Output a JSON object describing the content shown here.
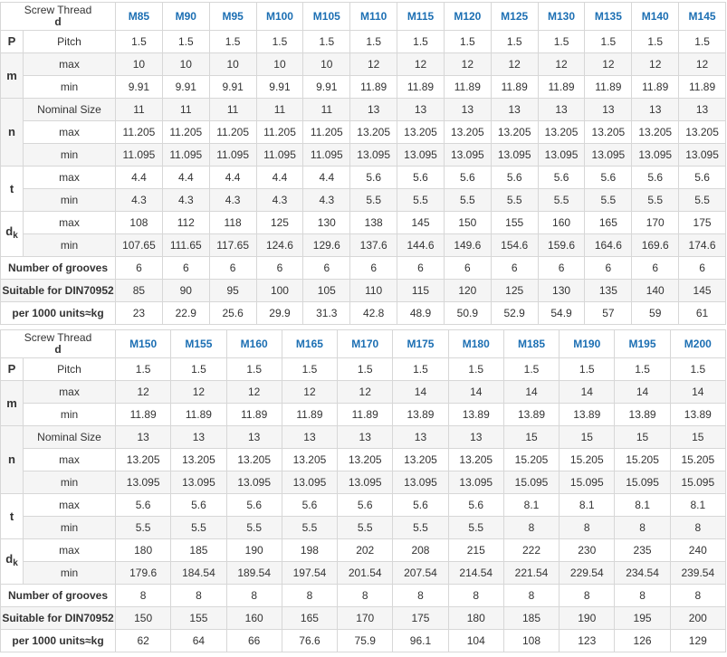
{
  "labels": {
    "screw_thread": "Screw Thread",
    "d": "d",
    "P": "P",
    "pitch": "Pitch",
    "m": "m",
    "max": "max",
    "min": "min",
    "nominal_size": "Nominal Size",
    "n": "n",
    "t": "t",
    "dk": "d",
    "dk_sub": "k",
    "grooves": "Number of grooves",
    "suitable": "Suitable for DIN70952",
    "weight": "per 1000 units≈kg"
  },
  "tables": [
    {
      "threads": [
        "M85",
        "M90",
        "M95",
        "M100",
        "M105",
        "M110",
        "M115",
        "M120",
        "M125",
        "M130",
        "M135",
        "M140",
        "M145"
      ],
      "pitch": [
        "1.5",
        "1.5",
        "1.5",
        "1.5",
        "1.5",
        "1.5",
        "1.5",
        "1.5",
        "1.5",
        "1.5",
        "1.5",
        "1.5",
        "1.5"
      ],
      "m_max": [
        "10",
        "10",
        "10",
        "10",
        "10",
        "12",
        "12",
        "12",
        "12",
        "12",
        "12",
        "12",
        "12"
      ],
      "m_min": [
        "9.91",
        "9.91",
        "9.91",
        "9.91",
        "9.91",
        "11.89",
        "11.89",
        "11.89",
        "11.89",
        "11.89",
        "11.89",
        "11.89",
        "11.89"
      ],
      "n_nominal": [
        "11",
        "11",
        "11",
        "11",
        "11",
        "13",
        "13",
        "13",
        "13",
        "13",
        "13",
        "13",
        "13"
      ],
      "n_max": [
        "11.205",
        "11.205",
        "11.205",
        "11.205",
        "11.205",
        "13.205",
        "13.205",
        "13.205",
        "13.205",
        "13.205",
        "13.205",
        "13.205",
        "13.205"
      ],
      "n_min": [
        "11.095",
        "11.095",
        "11.095",
        "11.095",
        "11.095",
        "13.095",
        "13.095",
        "13.095",
        "13.095",
        "13.095",
        "13.095",
        "13.095",
        "13.095"
      ],
      "t_max": [
        "4.4",
        "4.4",
        "4.4",
        "4.4",
        "4.4",
        "5.6",
        "5.6",
        "5.6",
        "5.6",
        "5.6",
        "5.6",
        "5.6",
        "5.6"
      ],
      "t_min": [
        "4.3",
        "4.3",
        "4.3",
        "4.3",
        "4.3",
        "5.5",
        "5.5",
        "5.5",
        "5.5",
        "5.5",
        "5.5",
        "5.5",
        "5.5"
      ],
      "dk_max": [
        "108",
        "112",
        "118",
        "125",
        "130",
        "138",
        "145",
        "150",
        "155",
        "160",
        "165",
        "170",
        "175"
      ],
      "dk_min": [
        "107.65",
        "111.65",
        "117.65",
        "124.6",
        "129.6",
        "137.6",
        "144.6",
        "149.6",
        "154.6",
        "159.6",
        "164.6",
        "169.6",
        "174.6"
      ],
      "grooves": [
        "6",
        "6",
        "6",
        "6",
        "6",
        "6",
        "6",
        "6",
        "6",
        "6",
        "6",
        "6",
        "6"
      ],
      "suitable": [
        "85",
        "90",
        "95",
        "100",
        "105",
        "110",
        "115",
        "120",
        "125",
        "130",
        "135",
        "140",
        "145"
      ],
      "weight": [
        "23",
        "22.9",
        "25.6",
        "29.9",
        "31.3",
        "42.8",
        "48.9",
        "50.9",
        "52.9",
        "54.9",
        "57",
        "59",
        "61"
      ]
    },
    {
      "threads": [
        "M150",
        "M155",
        "M160",
        "M165",
        "M170",
        "M175",
        "M180",
        "M185",
        "M190",
        "M195",
        "M200"
      ],
      "pitch": [
        "1.5",
        "1.5",
        "1.5",
        "1.5",
        "1.5",
        "1.5",
        "1.5",
        "1.5",
        "1.5",
        "1.5",
        "1.5"
      ],
      "m_max": [
        "12",
        "12",
        "12",
        "12",
        "12",
        "14",
        "14",
        "14",
        "14",
        "14",
        "14"
      ],
      "m_min": [
        "11.89",
        "11.89",
        "11.89",
        "11.89",
        "11.89",
        "13.89",
        "13.89",
        "13.89",
        "13.89",
        "13.89",
        "13.89"
      ],
      "n_nominal": [
        "13",
        "13",
        "13",
        "13",
        "13",
        "13",
        "13",
        "15",
        "15",
        "15",
        "15"
      ],
      "n_max": [
        "13.205",
        "13.205",
        "13.205",
        "13.205",
        "13.205",
        "13.205",
        "13.205",
        "15.205",
        "15.205",
        "15.205",
        "15.205"
      ],
      "n_min": [
        "13.095",
        "13.095",
        "13.095",
        "13.095",
        "13.095",
        "13.095",
        "13.095",
        "15.095",
        "15.095",
        "15.095",
        "15.095"
      ],
      "t_max": [
        "5.6",
        "5.6",
        "5.6",
        "5.6",
        "5.6",
        "5.6",
        "5.6",
        "8.1",
        "8.1",
        "8.1",
        "8.1"
      ],
      "t_min": [
        "5.5",
        "5.5",
        "5.5",
        "5.5",
        "5.5",
        "5.5",
        "5.5",
        "8",
        "8",
        "8",
        "8"
      ],
      "dk_max": [
        "180",
        "185",
        "190",
        "198",
        "202",
        "208",
        "215",
        "222",
        "230",
        "235",
        "240"
      ],
      "dk_min": [
        "179.6",
        "184.54",
        "189.54",
        "197.54",
        "201.54",
        "207.54",
        "214.54",
        "221.54",
        "229.54",
        "234.54",
        "239.54"
      ],
      "grooves": [
        "8",
        "8",
        "8",
        "8",
        "8",
        "8",
        "8",
        "8",
        "8",
        "8",
        "8"
      ],
      "suitable": [
        "150",
        "155",
        "160",
        "165",
        "170",
        "175",
        "180",
        "185",
        "190",
        "195",
        "200"
      ],
      "weight": [
        "62",
        "64",
        "66",
        "76.6",
        "75.9",
        "96.1",
        "104",
        "108",
        "123",
        "126",
        "129"
      ]
    }
  ],
  "colors": {
    "thread_header": "#1c6fb3",
    "border": "#d7d7d7",
    "row_shade": "#f5f5f5",
    "text": "#333333"
  }
}
